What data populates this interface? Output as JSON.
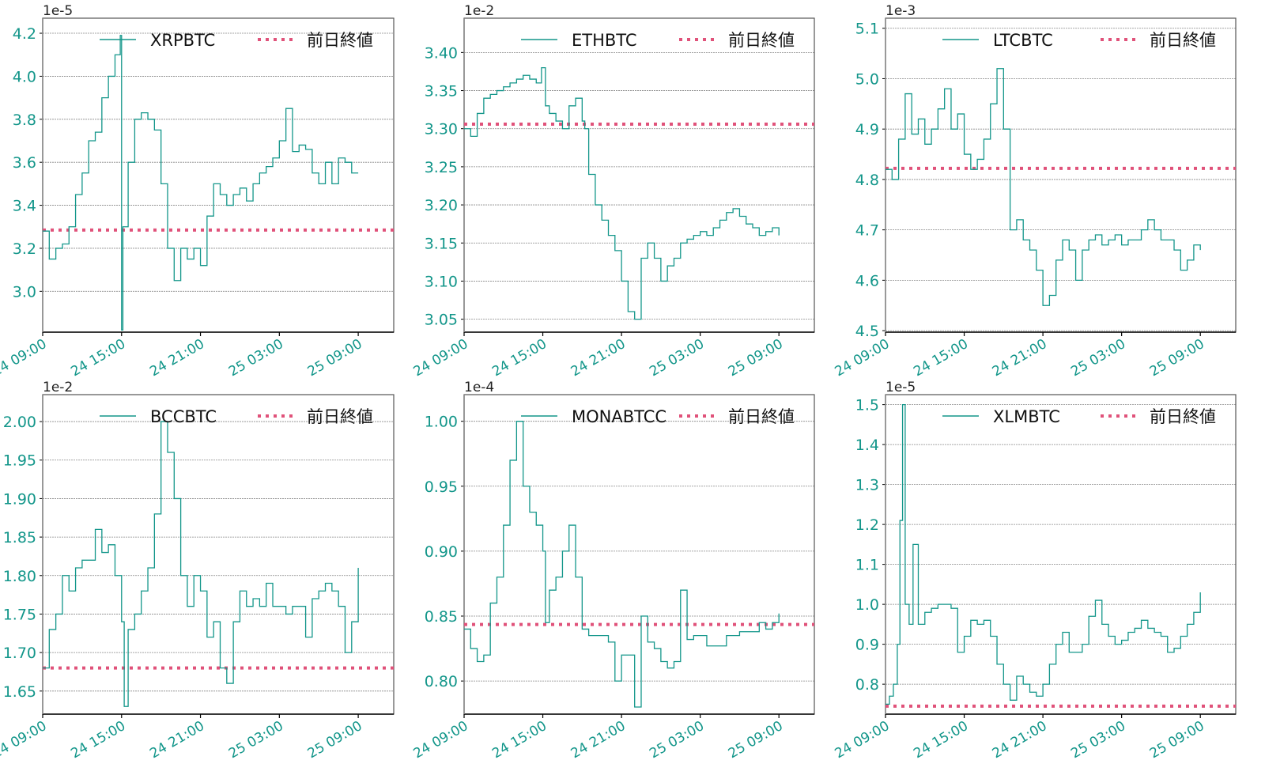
{
  "colors": {
    "series": "#13968a",
    "prev_close": "#e0527a",
    "tick_label": "#13968a",
    "grid": "#888888",
    "axis": "#000000"
  },
  "legend_prev_close_label": "前日終値",
  "x_ticks": [
    "24 09:00",
    "24 15:00",
    "24 21:00",
    "25 03:00",
    "25 09:00"
  ],
  "chart_data": [
    {
      "type": "line",
      "title": "",
      "series_name": "XRPBTC",
      "offset_label": "1e-5",
      "ylim": [
        2.81,
        4.27
      ],
      "yticks": [
        3.0,
        3.2,
        3.4,
        3.6,
        3.8,
        4.0,
        4.2
      ],
      "ytick_labels": [
        "3.0",
        "3.2",
        "3.4",
        "3.6",
        "3.8",
        "4.0",
        "4.2"
      ],
      "prev_close": 3.285,
      "x": [
        0,
        0.5,
        1,
        1.5,
        2,
        2.5,
        3,
        3.5,
        4,
        4.5,
        5,
        5.5,
        5.9,
        6.0,
        6.1,
        6.5,
        7,
        7.5,
        8,
        8.5,
        9,
        9.5,
        10,
        10.5,
        11,
        11.5,
        12,
        12.5,
        13,
        13.5,
        14,
        14.5,
        15,
        15.5,
        16,
        16.5,
        17,
        17.5,
        18,
        18.5,
        19,
        19.5,
        20,
        20.5,
        21,
        21.5,
        22,
        22.5,
        23,
        23.5,
        24
      ],
      "values": [
        3.28,
        3.15,
        3.2,
        3.22,
        3.3,
        3.45,
        3.55,
        3.7,
        3.74,
        3.9,
        4.0,
        4.1,
        4.19,
        2.82,
        3.3,
        3.6,
        3.8,
        3.83,
        3.8,
        3.75,
        3.5,
        3.2,
        3.05,
        3.2,
        3.15,
        3.2,
        3.12,
        3.35,
        3.5,
        3.45,
        3.4,
        3.45,
        3.48,
        3.42,
        3.5,
        3.55,
        3.58,
        3.62,
        3.7,
        3.85,
        3.65,
        3.68,
        3.66,
        3.55,
        3.5,
        3.6,
        3.5,
        3.62,
        3.6,
        3.55,
        3.55
      ],
      "xlabel": "",
      "ylabel": "",
      "grid": "horizontal",
      "legend_position": "upper center"
    },
    {
      "type": "line",
      "title": "",
      "series_name": "ETHBTC",
      "offset_label": "1e-2",
      "ylim": [
        3.033,
        3.445
      ],
      "yticks": [
        3.05,
        3.1,
        3.15,
        3.2,
        3.25,
        3.3,
        3.35,
        3.4
      ],
      "ytick_labels": [
        "3.05",
        "3.10",
        "3.15",
        "3.20",
        "3.25",
        "3.30",
        "3.35",
        "3.40"
      ],
      "prev_close": 3.306,
      "x": [
        0,
        0.5,
        1,
        1.5,
        2,
        2.5,
        3,
        3.5,
        4,
        4.5,
        5,
        5.5,
        5.9,
        6.2,
        6.5,
        7,
        7.5,
        8,
        8.5,
        9,
        9.2,
        9.5,
        10,
        10.5,
        11,
        11.5,
        12,
        12.5,
        13,
        13.5,
        14,
        14.5,
        15,
        15.5,
        16,
        16.5,
        17,
        17.5,
        18,
        18.5,
        19,
        19.5,
        20,
        20.5,
        21,
        21.5,
        22,
        22.5,
        23,
        23.5,
        24
      ],
      "values": [
        3.3,
        3.29,
        3.32,
        3.34,
        3.345,
        3.35,
        3.355,
        3.36,
        3.365,
        3.37,
        3.365,
        3.36,
        3.38,
        3.33,
        3.32,
        3.31,
        3.3,
        3.33,
        3.34,
        3.31,
        3.3,
        3.24,
        3.2,
        3.18,
        3.16,
        3.14,
        3.1,
        3.06,
        3.05,
        3.13,
        3.15,
        3.13,
        3.1,
        3.12,
        3.13,
        3.15,
        3.155,
        3.16,
        3.165,
        3.16,
        3.17,
        3.18,
        3.19,
        3.195,
        3.185,
        3.175,
        3.17,
        3.16,
        3.165,
        3.17,
        3.16
      ],
      "xlabel": "",
      "ylabel": "",
      "grid": "horizontal",
      "legend_position": "upper center"
    },
    {
      "type": "line",
      "title": "",
      "series_name": "LTCBTC",
      "offset_label": "1e-3",
      "ylim": [
        4.497,
        5.12
      ],
      "yticks": [
        4.5,
        4.6,
        4.7,
        4.8,
        4.9,
        5.0,
        5.1
      ],
      "ytick_labels": [
        "4.5",
        "4.6",
        "4.7",
        "4.8",
        "4.9",
        "5.0",
        "5.1"
      ],
      "prev_close": 4.822,
      "x": [
        0,
        0.5,
        1,
        1.5,
        2,
        2.5,
        3,
        3.5,
        4,
        4.5,
        5,
        5.5,
        6,
        6.5,
        7,
        7.5,
        8,
        8.5,
        9,
        9.5,
        10,
        10.5,
        11,
        11.5,
        12,
        12.5,
        13,
        13.5,
        14,
        14.5,
        15,
        15.5,
        16,
        16.5,
        17,
        17.5,
        18,
        18.5,
        19,
        19.5,
        20,
        20.5,
        21,
        21.5,
        22,
        22.5,
        23,
        23.5,
        24
      ],
      "values": [
        4.82,
        4.8,
        4.88,
        4.97,
        4.89,
        4.92,
        4.87,
        4.9,
        4.94,
        4.98,
        4.9,
        4.93,
        4.85,
        4.82,
        4.84,
        4.88,
        4.95,
        5.02,
        4.9,
        4.7,
        4.72,
        4.68,
        4.66,
        4.62,
        4.55,
        4.57,
        4.64,
        4.68,
        4.66,
        4.6,
        4.66,
        4.68,
        4.69,
        4.67,
        4.68,
        4.69,
        4.67,
        4.68,
        4.68,
        4.7,
        4.72,
        4.7,
        4.68,
        4.68,
        4.66,
        4.62,
        4.64,
        4.67,
        4.66
      ],
      "xlabel": "",
      "ylabel": "",
      "grid": "horizontal",
      "legend_position": "upper center"
    },
    {
      "type": "line",
      "title": "",
      "series_name": "BCCBTC",
      "offset_label": "1e-2",
      "ylim": [
        1.62,
        2.035
      ],
      "yticks": [
        1.65,
        1.7,
        1.75,
        1.8,
        1.85,
        1.9,
        1.95,
        2.0
      ],
      "ytick_labels": [
        "1.65",
        "1.70",
        "1.75",
        "1.80",
        "1.85",
        "1.90",
        "1.95",
        "2.00"
      ],
      "prev_close": 1.68,
      "x": [
        0,
        0.5,
        1,
        1.5,
        2,
        2.5,
        3,
        3.5,
        4,
        4.5,
        5,
        5.5,
        6,
        6.2,
        6.5,
        7,
        7.5,
        8,
        8.5,
        9,
        9.5,
        10,
        10.5,
        11,
        11.5,
        12,
        12.5,
        13,
        13.5,
        14,
        14.5,
        15,
        15.5,
        16,
        16.5,
        17,
        17.5,
        18,
        18.5,
        19,
        19.5,
        20,
        20.5,
        21,
        21.5,
        22,
        22.5,
        23,
        23.5,
        24
      ],
      "values": [
        1.68,
        1.73,
        1.75,
        1.8,
        1.78,
        1.81,
        1.82,
        1.82,
        1.86,
        1.83,
        1.84,
        1.8,
        1.74,
        1.63,
        1.73,
        1.75,
        1.78,
        1.81,
        1.88,
        2.0,
        1.96,
        1.9,
        1.8,
        1.76,
        1.8,
        1.78,
        1.72,
        1.74,
        1.68,
        1.66,
        1.74,
        1.78,
        1.76,
        1.77,
        1.76,
        1.79,
        1.76,
        1.76,
        1.75,
        1.76,
        1.76,
        1.72,
        1.77,
        1.78,
        1.79,
        1.78,
        1.76,
        1.7,
        1.74,
        1.81
      ],
      "xlabel": "",
      "ylabel": "",
      "grid": "horizontal",
      "legend_position": "upper center"
    },
    {
      "type": "line",
      "title": "",
      "series_name": "MONABTCC",
      "offset_label": "1e-4",
      "ylim": [
        0.7745,
        1.0205
      ],
      "yticks": [
        0.8,
        0.85,
        0.9,
        0.95,
        1.0
      ],
      "ytick_labels": [
        "0.80",
        "0.85",
        "0.90",
        "0.95",
        "1.00"
      ],
      "prev_close": 0.8435,
      "x": [
        0,
        0.5,
        1,
        1.5,
        2,
        2.5,
        3,
        3.5,
        4,
        4.5,
        5,
        5.5,
        6,
        6.2,
        6.5,
        7,
        7.5,
        8,
        8.5,
        9,
        9.5,
        10,
        10.5,
        11,
        11.5,
        12,
        12.5,
        13,
        13.5,
        14,
        14.5,
        15,
        15.5,
        16,
        16.5,
        17,
        17.5,
        18,
        18.5,
        19,
        19.5,
        20,
        20.5,
        21,
        21.5,
        22,
        22.5,
        23,
        23.5,
        24
      ],
      "values": [
        0.84,
        0.825,
        0.815,
        0.82,
        0.86,
        0.88,
        0.92,
        0.97,
        1.0,
        0.95,
        0.93,
        0.92,
        0.9,
        0.845,
        0.87,
        0.88,
        0.9,
        0.92,
        0.88,
        0.84,
        0.835,
        0.835,
        0.835,
        0.83,
        0.8,
        0.82,
        0.82,
        0.78,
        0.85,
        0.83,
        0.825,
        0.815,
        0.81,
        0.815,
        0.87,
        0.832,
        0.835,
        0.835,
        0.827,
        0.827,
        0.827,
        0.835,
        0.835,
        0.838,
        0.838,
        0.838,
        0.845,
        0.84,
        0.845,
        0.852
      ],
      "xlabel": "",
      "ylabel": "",
      "grid": "horizontal",
      "legend_position": "upper center"
    },
    {
      "type": "line",
      "title": "",
      "series_name": "XLMBTC",
      "offset_label": "1e-5",
      "ylim": [
        0.725,
        1.525
      ],
      "yticks": [
        0.8,
        0.9,
        1.0,
        1.1,
        1.2,
        1.3,
        1.4,
        1.5
      ],
      "ytick_labels": [
        "0.8",
        "0.9",
        "1.0",
        "1.1",
        "1.2",
        "1.3",
        "1.4",
        "1.5"
      ],
      "prev_close": 0.745,
      "x": [
        0,
        0.3,
        0.6,
        0.9,
        1.1,
        1.3,
        1.5,
        1.8,
        2.1,
        2.5,
        3,
        3.5,
        4,
        4.5,
        5,
        5.5,
        6,
        6.5,
        7,
        7.5,
        8,
        8.5,
        9,
        9.5,
        10,
        10.5,
        11,
        11.5,
        12,
        12.5,
        13,
        13.5,
        14,
        14.5,
        15,
        15.5,
        16,
        16.5,
        17,
        17.5,
        18,
        18.5,
        19,
        19.5,
        20,
        20.5,
        21,
        21.5,
        22,
        22.5,
        23,
        23.5,
        24
      ],
      "values": [
        0.75,
        0.77,
        0.8,
        0.9,
        1.21,
        1.5,
        1.0,
        0.95,
        1.15,
        0.95,
        0.98,
        0.99,
        1.0,
        1.0,
        0.99,
        0.88,
        0.92,
        0.96,
        0.95,
        0.96,
        0.92,
        0.85,
        0.8,
        0.76,
        0.82,
        0.8,
        0.78,
        0.77,
        0.8,
        0.85,
        0.9,
        0.93,
        0.88,
        0.88,
        0.9,
        0.97,
        1.01,
        0.95,
        0.92,
        0.9,
        0.91,
        0.93,
        0.94,
        0.96,
        0.94,
        0.93,
        0.92,
        0.88,
        0.89,
        0.92,
        0.95,
        0.98,
        1.03
      ],
      "xlabel": "",
      "ylabel": "",
      "grid": "horizontal",
      "legend_position": "upper center"
    }
  ]
}
